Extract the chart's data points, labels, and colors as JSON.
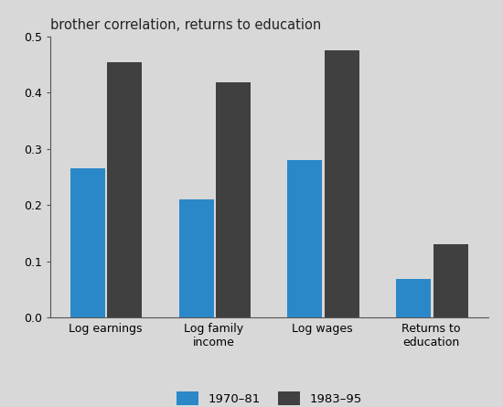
{
  "title": "brother correlation, returns to education",
  "categories": [
    "Log earnings",
    "Log family\nincome",
    "Log wages",
    "Returns to\neducation"
  ],
  "series": [
    {
      "label": "1970–81",
      "values": [
        0.265,
        0.21,
        0.28,
        0.068
      ],
      "color": "#2b88c8"
    },
    {
      "label": "1983–95",
      "values": [
        0.455,
        0.418,
        0.475,
        0.13
      ],
      "color": "#404040"
    }
  ],
  "ylim": [
    0,
    0.5
  ],
  "yticks": [
    0.0,
    0.1,
    0.2,
    0.3,
    0.4,
    0.5
  ],
  "background_color": "#d8d8d8",
  "plot_background_color": "#d8d8d8",
  "bar_width": 0.32,
  "title_fontsize": 10.5,
  "tick_fontsize": 9,
  "legend_fontsize": 9.5
}
